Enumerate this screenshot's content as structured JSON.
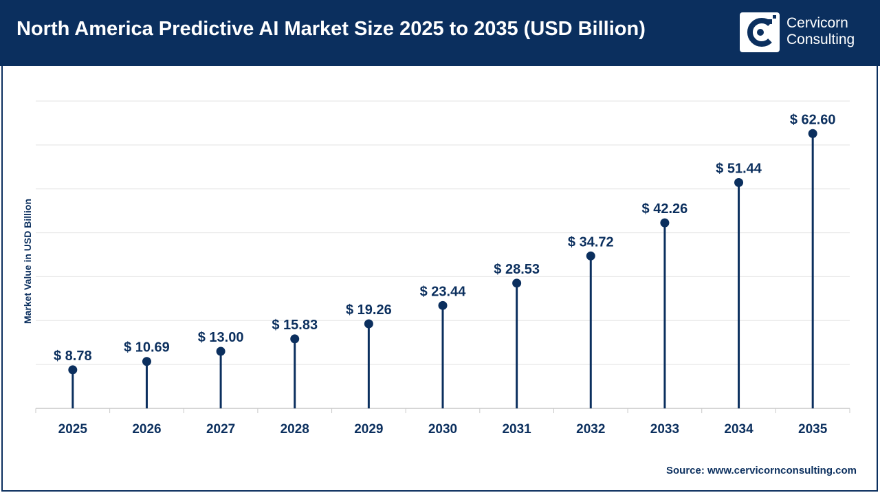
{
  "header": {
    "title": "North America Predictive AI Market Size 2025 to 2035 (USD Billion)",
    "logo_line1": "Cervicorn",
    "logo_line2": "Consulting"
  },
  "source": "Source: www.cervicornconsulting.com",
  "colors": {
    "header_bg": "#0b2f5e",
    "series": "#0b2f5e",
    "grid": "#e3e3e3"
  },
  "chart_data": {
    "type": "scatter",
    "style": "lollipop",
    "title": "North America Predictive AI Market Size 2025 to 2035 (USD Billion)",
    "ylabel": "Market Value in USD Billion",
    "xlabel": "",
    "categories": [
      "2025",
      "2026",
      "2027",
      "2028",
      "2029",
      "2030",
      "2031",
      "2032",
      "2033",
      "2034",
      "2035"
    ],
    "values": [
      8.78,
      10.69,
      13.0,
      15.83,
      19.26,
      23.44,
      28.53,
      34.72,
      42.26,
      51.44,
      62.6
    ],
    "data_labels": [
      "$ 8.78",
      "$ 10.69",
      "$ 13.00",
      "$ 15.83",
      "$ 19.26",
      "$ 23.44",
      "$ 28.53",
      "$ 34.72",
      "$ 42.26",
      "$ 51.44",
      "$ 62.60"
    ],
    "ylim": [
      0,
      70
    ],
    "grid": true,
    "legend": "none"
  }
}
